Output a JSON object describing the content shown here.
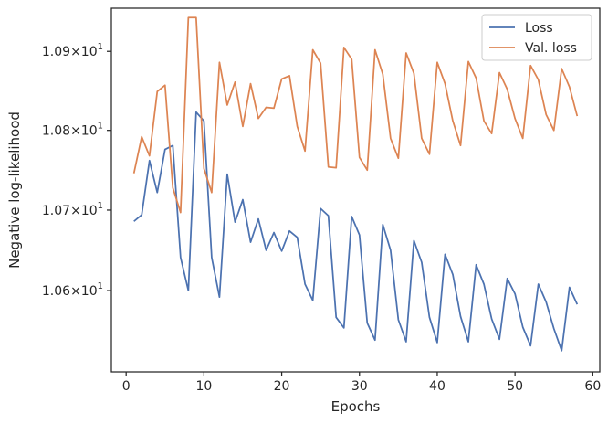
{
  "chart_data": {
    "type": "line",
    "xlabel": "Epochs",
    "ylabel": "Negative log-likelihood",
    "xlim": [
      -1.9,
      60.9
    ],
    "ylim": [
      10.5,
      10.955
    ],
    "y_scale": "log",
    "grid": false,
    "legend_position": "top-right",
    "x_ticks": [
      {
        "value": 0,
        "label": "0"
      },
      {
        "value": 10,
        "label": "10"
      },
      {
        "value": 20,
        "label": "20"
      },
      {
        "value": 30,
        "label": "30"
      },
      {
        "value": 40,
        "label": "40"
      },
      {
        "value": 50,
        "label": "50"
      },
      {
        "value": 60,
        "label": "60"
      }
    ],
    "y_ticks": [
      {
        "value": 10.6,
        "mantissa": "1.06",
        "base": "10",
        "exponent": "1"
      },
      {
        "value": 10.7,
        "mantissa": "1.07",
        "base": "10",
        "exponent": "1"
      },
      {
        "value": 10.8,
        "mantissa": "1.08",
        "base": "10",
        "exponent": "1"
      },
      {
        "value": 10.9,
        "mantissa": "1.09",
        "base": "10",
        "exponent": "1"
      }
    ],
    "x": [
      1,
      2,
      3,
      4,
      5,
      6,
      7,
      8,
      9,
      10,
      11,
      12,
      13,
      14,
      15,
      16,
      17,
      18,
      19,
      20,
      21,
      22,
      23,
      24,
      25,
      26,
      27,
      28,
      29,
      30,
      31,
      32,
      33,
      34,
      35,
      36,
      37,
      38,
      39,
      40,
      41,
      42,
      43,
      44,
      45,
      46,
      47,
      48,
      49,
      50,
      51,
      52,
      53,
      54,
      55,
      56,
      57,
      58
    ],
    "series": [
      {
        "name": "Loss",
        "color": "#4c72b0",
        "values": [
          10.686,
          10.694,
          10.762,
          10.722,
          10.776,
          10.781,
          10.641,
          10.6,
          10.823,
          10.812,
          10.641,
          10.592,
          10.745,
          10.685,
          10.713,
          10.66,
          10.689,
          10.65,
          10.672,
          10.649,
          10.674,
          10.666,
          10.608,
          10.588,
          10.702,
          10.693,
          10.567,
          10.554,
          10.692,
          10.669,
          10.56,
          10.539,
          10.682,
          10.65,
          10.564,
          10.537,
          10.662,
          10.635,
          10.567,
          10.536,
          10.645,
          10.62,
          10.568,
          10.537,
          10.632,
          10.608,
          10.565,
          10.54,
          10.615,
          10.596,
          10.555,
          10.532,
          10.608,
          10.586,
          10.553,
          10.526,
          10.604,
          10.583
        ]
      },
      {
        "name": "Val. loss",
        "color": "#dd8452",
        "values": [
          10.746,
          10.792,
          10.768,
          10.849,
          10.857,
          10.728,
          10.697,
          10.943,
          10.943,
          10.752,
          10.722,
          10.886,
          10.832,
          10.861,
          10.805,
          10.859,
          10.815,
          10.829,
          10.828,
          10.865,
          10.869,
          10.805,
          10.774,
          10.902,
          10.885,
          10.754,
          10.753,
          10.905,
          10.89,
          10.766,
          10.75,
          10.902,
          10.871,
          10.79,
          10.765,
          10.898,
          10.872,
          10.79,
          10.77,
          10.886,
          10.859,
          10.812,
          10.781,
          10.887,
          10.866,
          10.812,
          10.796,
          10.873,
          10.852,
          10.815,
          10.79,
          10.882,
          10.864,
          10.82,
          10.8,
          10.878,
          10.855,
          10.818
        ]
      }
    ]
  }
}
